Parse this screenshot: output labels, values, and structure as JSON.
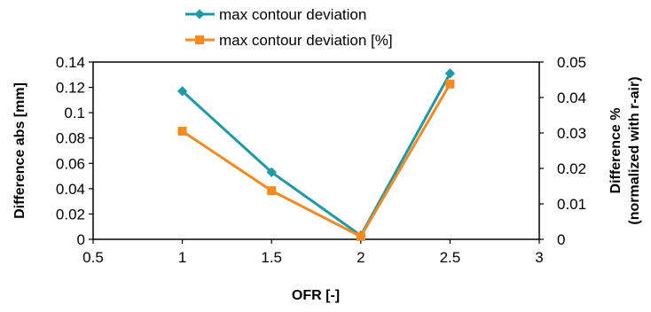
{
  "chart_data": {
    "type": "line",
    "x_label": "OFR [-]",
    "y_left_label": "Difference abs [mm]",
    "y_right_label_line1": "Difference %",
    "y_right_label_line2": "(normalized with r-air)",
    "xlim": [
      0.5,
      3
    ],
    "x_ticks": [
      "0.5",
      "1",
      "1.5",
      "2",
      "2.5",
      "3"
    ],
    "ylim_left": [
      0,
      0.14
    ],
    "y_left_ticks": [
      "0",
      "0.02",
      "0.04",
      "0.06",
      "0.08",
      "0.1",
      "0.12",
      "0.14"
    ],
    "ylim_right": [
      0,
      0.05
    ],
    "y_right_ticks": [
      "0",
      "0.01",
      "0.02",
      "0.03",
      "0.04",
      "0.05"
    ],
    "legend_position": "top",
    "grid": false,
    "series": [
      {
        "name": "max contour deviation",
        "axis": "left",
        "color": "#1C9AA9",
        "marker": "diamond",
        "x": [
          1,
          1.5,
          2,
          2.5
        ],
        "y": [
          0.117,
          0.053,
          0.003,
          0.131
        ]
      },
      {
        "name": "max contour deviation [%]",
        "axis": "right",
        "color": "#F58A1F",
        "marker": "square",
        "x": [
          1,
          1.5,
          2,
          2.5
        ],
        "y": [
          0.0305,
          0.0137,
          0.0008,
          0.0438
        ]
      }
    ]
  }
}
